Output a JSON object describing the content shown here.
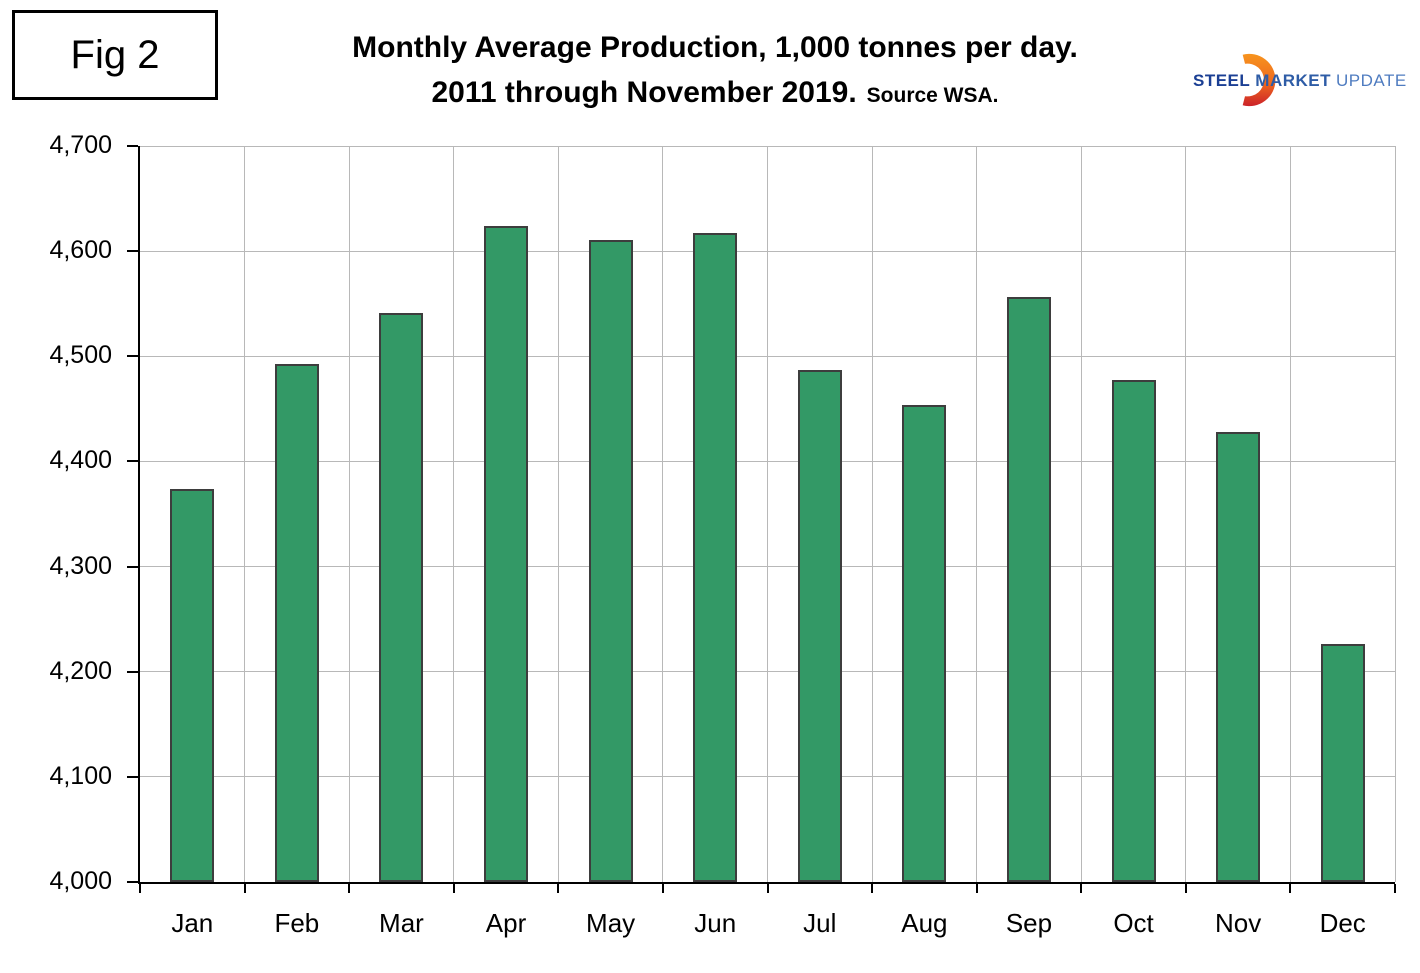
{
  "figure_label": "Fig 2",
  "title": {
    "line1": "Monthly Average Production, 1,000 tonnes per day.",
    "line2": "2011 through November 2019.",
    "source": "Source WSA."
  },
  "logo": {
    "steel": "STEEL",
    "market": "MARKET",
    "update": "UPDATE",
    "crescent_top_color": "#f7941e",
    "crescent_bottom_color": "#cc2229"
  },
  "chart_data": {
    "type": "bar",
    "title": "Monthly Average Production, 1,000 tonnes per day. 2011 through November 2019. Source WSA.",
    "categories": [
      "Jan",
      "Feb",
      "Mar",
      "Apr",
      "May",
      "Jun",
      "Jul",
      "Aug",
      "Sep",
      "Oct",
      "Nov",
      "Dec"
    ],
    "values": [
      4374,
      4493,
      4541,
      4624,
      4611,
      4617,
      4487,
      4454,
      4556,
      4477,
      4428,
      4226
    ],
    "xlabel": "",
    "ylabel": "",
    "ylim": [
      4000,
      4700
    ],
    "ytick_interval": 100,
    "ytick_labels": [
      "4,000",
      "4,100",
      "4,200",
      "4,300",
      "4,400",
      "4,500",
      "4,600",
      "4,700"
    ],
    "grid": true,
    "legend": false,
    "bar_color": "#339966",
    "bar_border_color": "#3d3d3d",
    "gridline_color": "#b8b8b8"
  }
}
